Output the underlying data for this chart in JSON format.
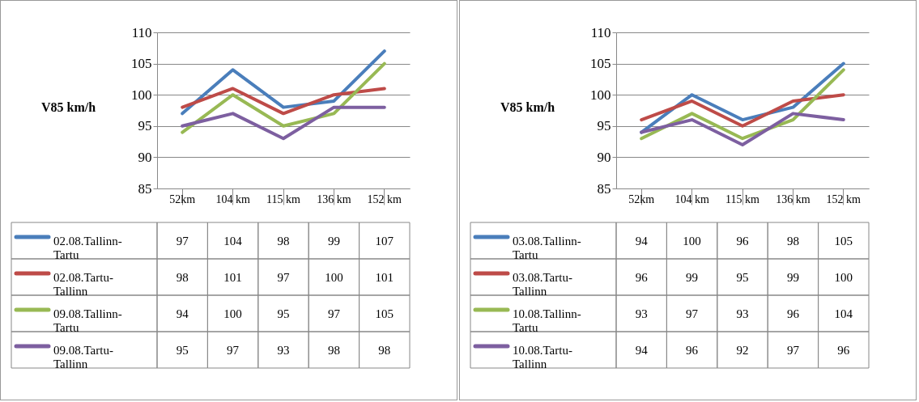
{
  "chart_data": [
    {
      "type": "line",
      "ylabel": "V85 km/h",
      "categories": [
        "52km",
        "104 km",
        "115 km",
        "136 km",
        "152 km"
      ],
      "ylim": [
        85,
        110
      ],
      "yticks": [
        85,
        90,
        95,
        100,
        105,
        110
      ],
      "grid": "y",
      "legend": "bottom",
      "data_labels": true,
      "series": [
        {
          "name": "02.08.Tallinn-Tartu",
          "color": "#4a7ebb",
          "values": [
            97,
            104,
            98,
            99,
            107
          ]
        },
        {
          "name": "02.08.Tartu-Tallinn",
          "color": "#be4b48",
          "values": [
            98,
            101,
            97,
            100,
            101
          ]
        },
        {
          "name": "09.08.Tallinn-Tartu",
          "color": "#98b954",
          "values": [
            94,
            100,
            95,
            97,
            105
          ]
        },
        {
          "name": "09.08.Tartu-Tallinn",
          "color": "#7d5fa0",
          "values": [
            95,
            97,
            93,
            98,
            98
          ]
        }
      ]
    },
    {
      "type": "line",
      "ylabel": "V85 km/h",
      "categories": [
        "52km",
        "104 km",
        "115 km",
        "136 km",
        "152 km"
      ],
      "ylim": [
        85,
        110
      ],
      "yticks": [
        85,
        90,
        95,
        100,
        105,
        110
      ],
      "grid": "y",
      "legend": "bottom",
      "data_labels": true,
      "series": [
        {
          "name": "03.08.Tallinn-Tartu",
          "color": "#4a7ebb",
          "values": [
            94,
            100,
            96,
            98,
            105
          ]
        },
        {
          "name": "03.08.Tartu-Tallinn",
          "color": "#be4b48",
          "values": [
            96,
            99,
            95,
            99,
            100
          ]
        },
        {
          "name": "10.08.Tallinn-Tartu",
          "color": "#98b954",
          "values": [
            93,
            97,
            93,
            96,
            104
          ]
        },
        {
          "name": "10.08.Tartu-Tallinn",
          "color": "#7d5fa0",
          "values": [
            94,
            96,
            92,
            97,
            96
          ]
        }
      ]
    }
  ]
}
